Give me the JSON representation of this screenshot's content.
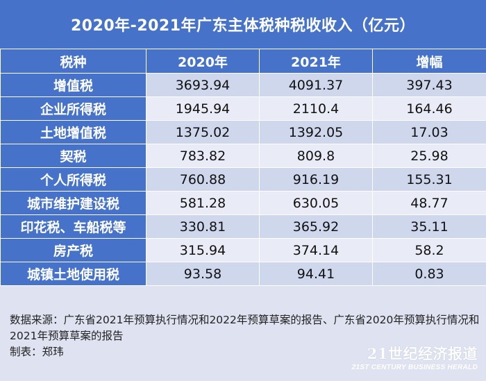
{
  "chart_data": {
    "type": "table",
    "title": "2020年-2021年广东主体税种税收收入（亿元）",
    "columns": [
      "税种",
      "2020年",
      "2021年",
      "增幅"
    ],
    "rows": [
      [
        "增值税",
        "3693.94",
        "4091.37",
        "397.43"
      ],
      [
        "企业所得税",
        "1945.94",
        "2110.4",
        "164.46"
      ],
      [
        "土地增值税",
        "1375.02",
        "1392.05",
        "17.03"
      ],
      [
        "契税",
        "783.82",
        "809.8",
        "25.98"
      ],
      [
        "个人所得税",
        "760.88",
        "916.19",
        "155.31"
      ],
      [
        "城市维护建设税",
        "581.28",
        "630.05",
        "48.77"
      ],
      [
        "印花税、车船税等",
        "330.81",
        "365.92",
        "35.11"
      ],
      [
        "房产税",
        "315.94",
        "374.14",
        "58.2"
      ],
      [
        "城镇土地使用税",
        "93.58",
        "94.41",
        "0.83"
      ]
    ]
  },
  "notes": {
    "source": "数据来源：广东省2021年预算执行情况和2022年预算草案的报告、广东省2020年预算执行情况和2021年预算草案的报告",
    "author": "制表：郑玮"
  },
  "logo": {
    "cn": "21世纪经济报道",
    "en": "21ST CENTURY BUSINESS HERALD"
  },
  "colors": {
    "header": "#4673c9",
    "row_dark": "#ced7ec",
    "row_light": "#e9ecf6",
    "background": "#dfe3f1"
  }
}
